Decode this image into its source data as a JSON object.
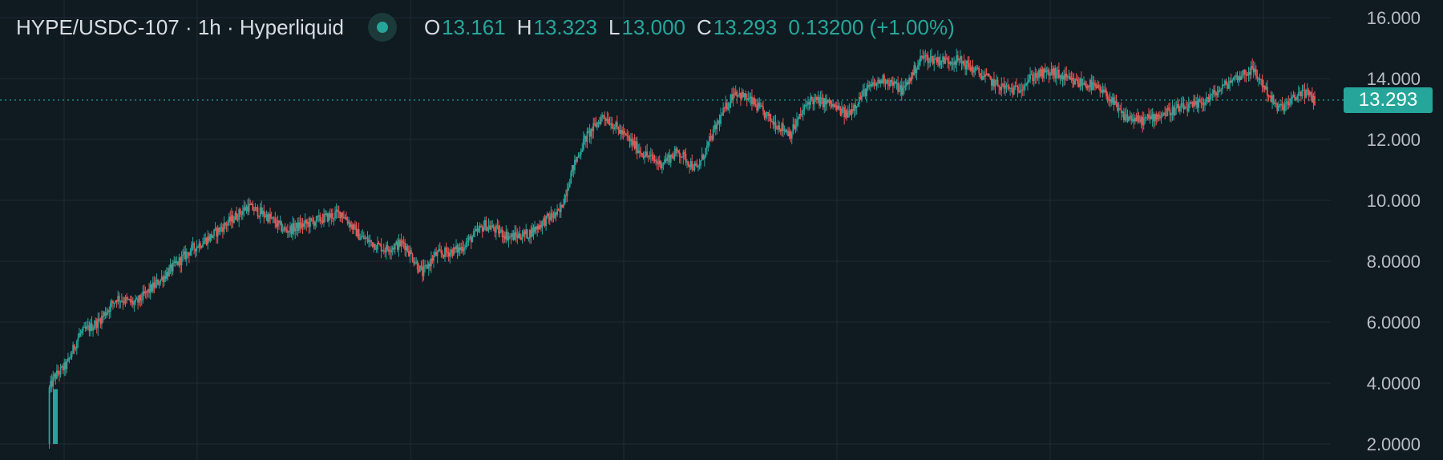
{
  "header": {
    "title": "HYPE/USDC-107 · 1h · Hyperliquid",
    "ohlc": {
      "open_label": "O",
      "open": "13.161",
      "high_label": "H",
      "high": "13.323",
      "low_label": "L",
      "low": "13.000",
      "close_label": "C",
      "close": "13.293"
    },
    "change": "0.13200 (+1.00%)"
  },
  "last_price": "13.293",
  "colors": {
    "background": "#101a21",
    "up": "#26a69a",
    "down": "#ef5350",
    "grid": "#1f2a32",
    "axis_text": "#b7bec4"
  },
  "chart_data": {
    "type": "candlestick",
    "symbol": "HYPE/USDC-107",
    "interval": "1h",
    "exchange": "Hyperliquid",
    "ylim": [
      1.8,
      16.4
    ],
    "y_ticks": [
      "16.000",
      "14.000",
      "12.000",
      "10.000",
      "8.0000",
      "6.0000",
      "4.0000",
      "2.0000"
    ],
    "y_tick_values": [
      16,
      14,
      12,
      10,
      8,
      6,
      4,
      2
    ],
    "last_price": 13.293,
    "grid": true,
    "price_path_approx": [
      [
        0,
        2.0
      ],
      [
        1,
        3.8
      ],
      [
        5,
        4.2
      ],
      [
        15,
        4.6
      ],
      [
        25,
        5.6
      ],
      [
        40,
        6.0
      ],
      [
        55,
        6.8
      ],
      [
        70,
        6.6
      ],
      [
        85,
        7.2
      ],
      [
        100,
        7.8
      ],
      [
        115,
        8.4
      ],
      [
        130,
        8.8
      ],
      [
        145,
        9.3
      ],
      [
        160,
        9.8
      ],
      [
        175,
        9.5
      ],
      [
        190,
        9.0
      ],
      [
        205,
        9.2
      ],
      [
        220,
        9.4
      ],
      [
        235,
        9.6
      ],
      [
        250,
        8.8
      ],
      [
        270,
        8.4
      ],
      [
        285,
        8.6
      ],
      [
        300,
        7.6
      ],
      [
        310,
        8.2
      ],
      [
        330,
        8.4
      ],
      [
        350,
        9.2
      ],
      [
        370,
        8.8
      ],
      [
        385,
        8.9
      ],
      [
        400,
        9.4
      ],
      [
        410,
        9.6
      ],
      [
        420,
        11.0
      ],
      [
        430,
        12.0
      ],
      [
        445,
        12.8
      ],
      [
        460,
        12.2
      ],
      [
        475,
        11.6
      ],
      [
        490,
        11.2
      ],
      [
        505,
        11.6
      ],
      [
        520,
        11.0
      ],
      [
        535,
        12.4
      ],
      [
        550,
        13.6
      ],
      [
        565,
        13.2
      ],
      [
        580,
        12.6
      ],
      [
        595,
        12.2
      ],
      [
        610,
        13.3
      ],
      [
        625,
        13.2
      ],
      [
        640,
        12.8
      ],
      [
        655,
        13.6
      ],
      [
        670,
        14.0
      ],
      [
        685,
        13.6
      ],
      [
        700,
        14.7
      ],
      [
        715,
        14.6
      ],
      [
        730,
        14.6
      ],
      [
        745,
        14.2
      ],
      [
        760,
        13.8
      ],
      [
        775,
        13.6
      ],
      [
        790,
        14.1
      ],
      [
        805,
        14.2
      ],
      [
        820,
        13.9
      ],
      [
        835,
        13.8
      ],
      [
        850,
        13.4
      ],
      [
        860,
        12.8
      ],
      [
        875,
        12.6
      ],
      [
        890,
        12.8
      ],
      [
        905,
        13.0
      ],
      [
        920,
        13.1
      ],
      [
        935,
        13.5
      ],
      [
        950,
        14.0
      ],
      [
        965,
        14.3
      ],
      [
        975,
        13.7
      ],
      [
        985,
        13.0
      ],
      [
        995,
        13.2
      ],
      [
        1005,
        13.6
      ],
      [
        1015,
        13.293
      ]
    ]
  }
}
